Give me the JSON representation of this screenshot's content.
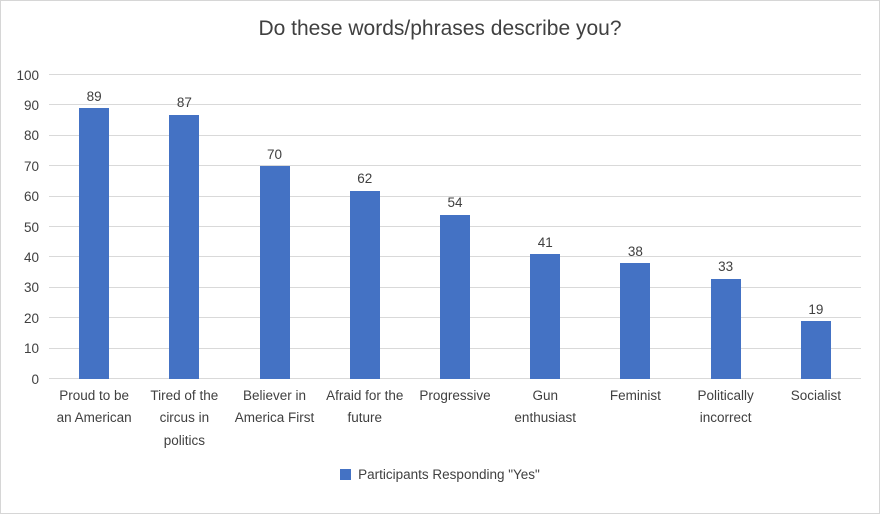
{
  "chart_data": {
    "type": "bar",
    "title": "Do these words/phrases describe you?",
    "categories": [
      "Proud to be an American",
      "Tired of the circus in politics",
      "Believer in America First",
      "Afraid for the future",
      "Progressive",
      "Gun enthusiast",
      "Feminist",
      "Politically incorrect",
      "Socialist"
    ],
    "values": [
      89,
      87,
      70,
      62,
      54,
      41,
      38,
      33,
      19
    ],
    "legend": "Participants Responding \"Yes\"",
    "xlabel": "",
    "ylabel": "",
    "ylim": [
      0,
      100
    ],
    "ytick_step": 10,
    "grid": true,
    "legend_position": "bottom",
    "bar_color": "#4472C4",
    "gridline_color": "#d9d9d9",
    "text_color": "#404040"
  }
}
